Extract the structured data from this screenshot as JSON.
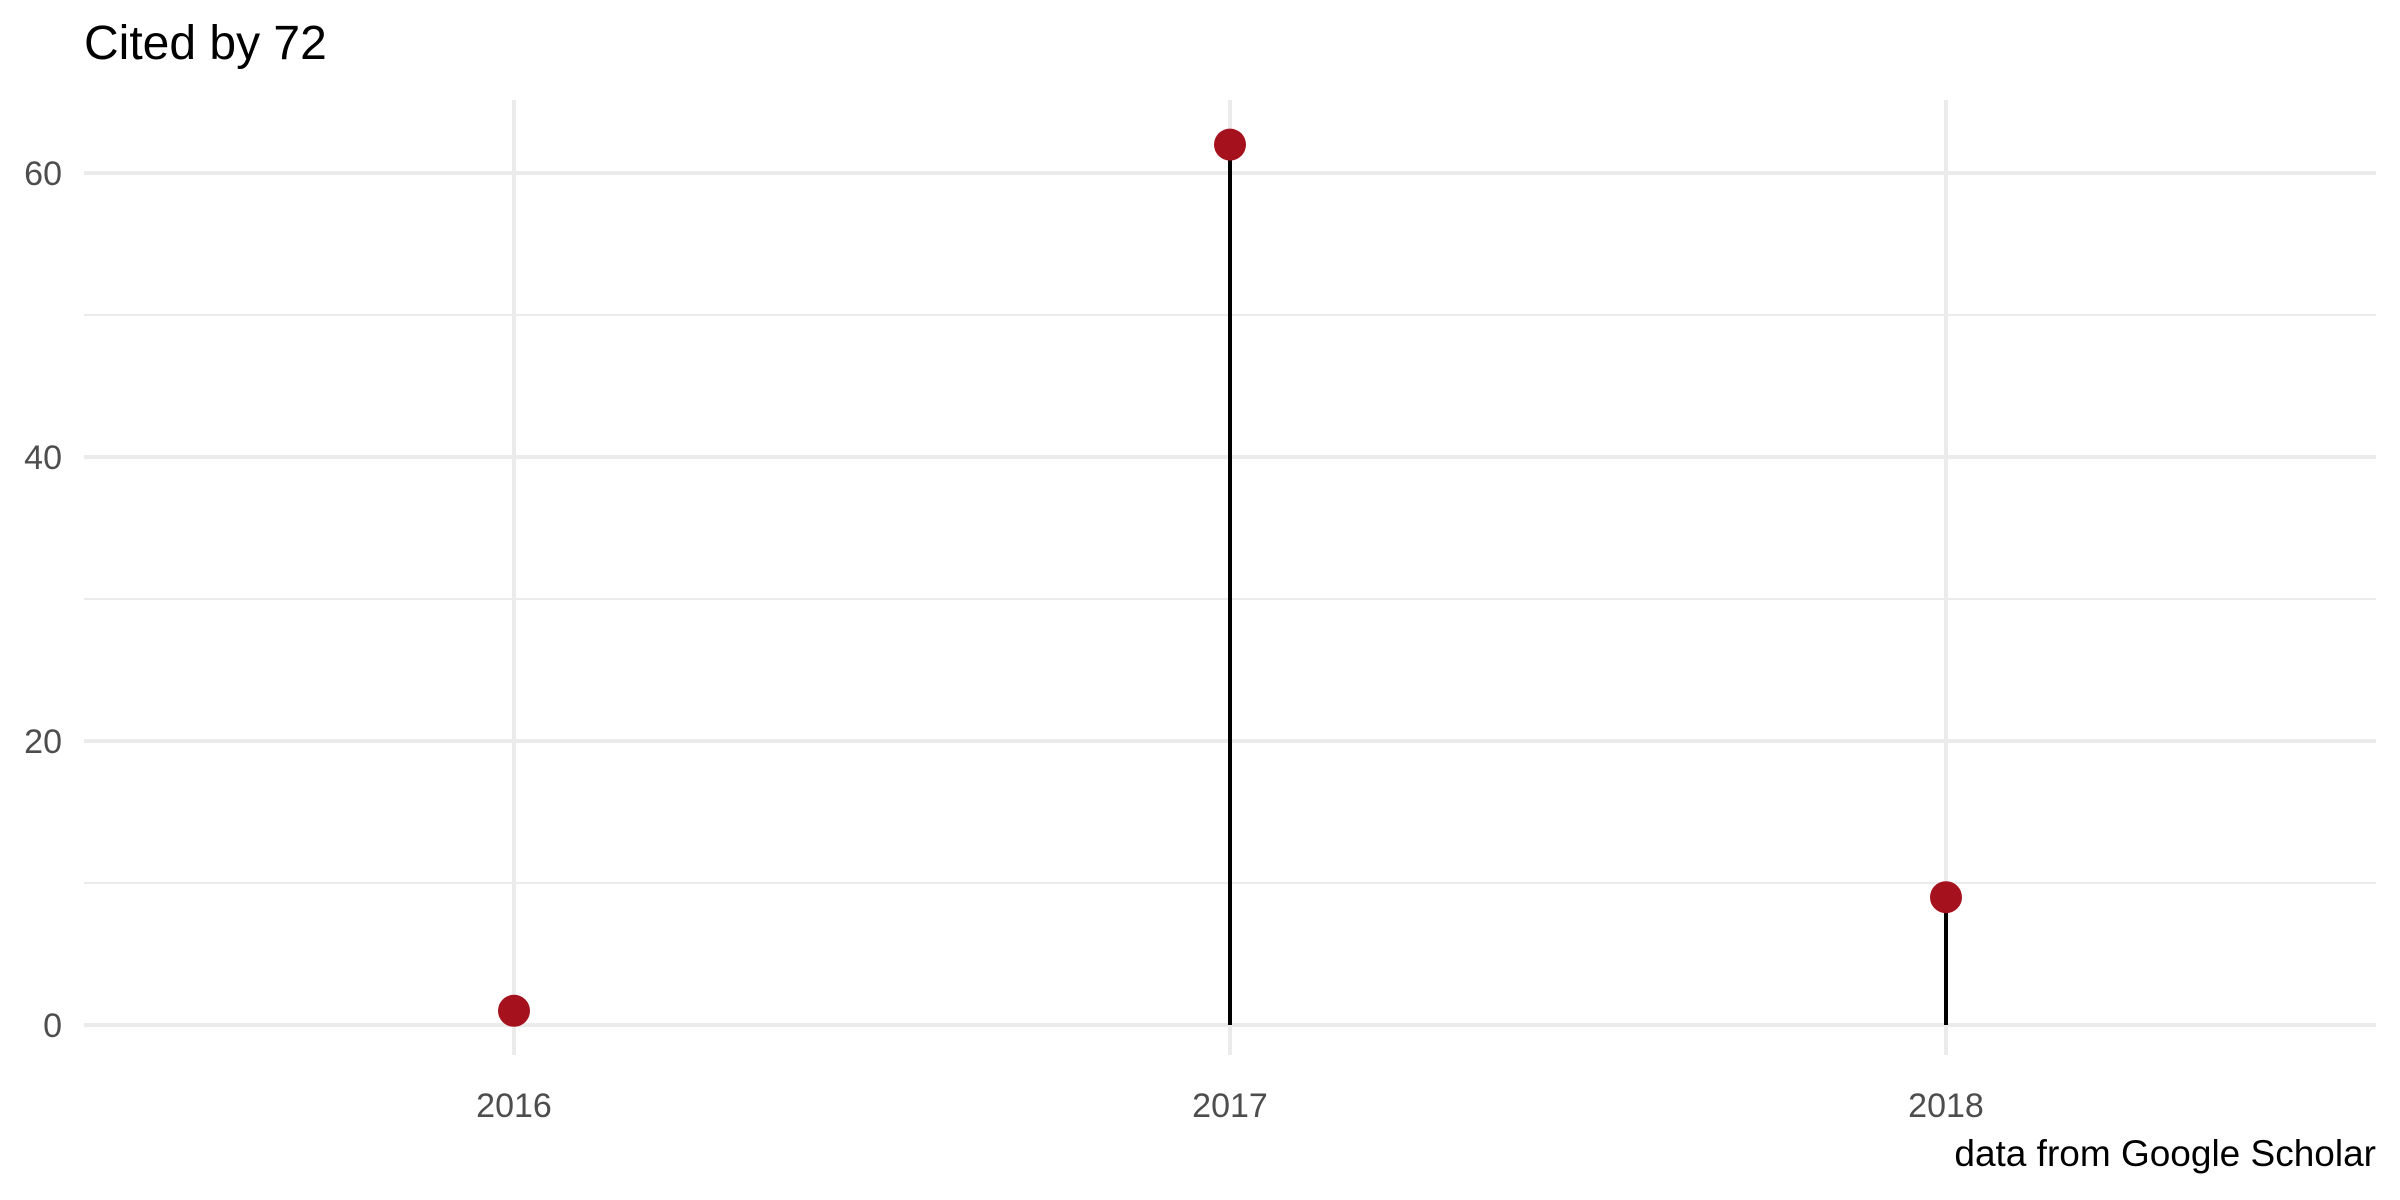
{
  "chart_data": {
    "type": "lollipop",
    "title": "Cited by 72",
    "caption": "data from Google Scholar",
    "xlabel": "",
    "ylabel": "",
    "categories": [
      "2016",
      "2017",
      "2018"
    ],
    "values": [
      1,
      62,
      9
    ],
    "ylim": [
      0,
      65
    ],
    "y_ticks": [
      0,
      20,
      40,
      60
    ],
    "y_tick_labels": [
      "0",
      "20",
      "40",
      "60"
    ],
    "grid": true,
    "legend": "none",
    "point_color": "#a5121e",
    "stem_color": "#000000"
  }
}
